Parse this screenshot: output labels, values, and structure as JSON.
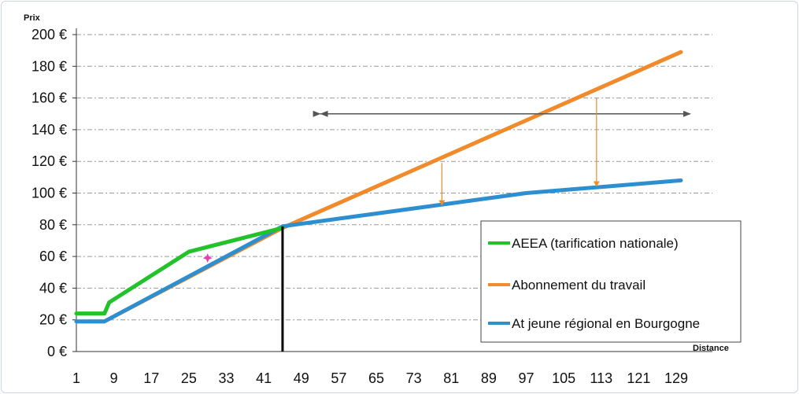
{
  "chart_data": {
    "type": "line",
    "ylabel": "Prix",
    "xlabel": "Distance",
    "ylim": [
      0,
      200
    ],
    "xlim": [
      1,
      129
    ],
    "y_ticks": [
      0,
      20,
      40,
      60,
      80,
      100,
      120,
      140,
      160,
      180,
      200
    ],
    "y_tick_labels": [
      "0 €",
      "20 €",
      "40 €",
      "60 €",
      "80 €",
      "100 €",
      "120 €",
      "140 €",
      "160 €",
      "180 €",
      "200 €"
    ],
    "x_ticks": [
      1,
      9,
      17,
      25,
      33,
      41,
      49,
      57,
      65,
      73,
      81,
      89,
      97,
      105,
      113,
      121,
      129
    ],
    "x_tick_labels": [
      "1",
      "9",
      "17",
      "25",
      "33",
      "41",
      "49",
      "57",
      "65",
      "73",
      "81",
      "89",
      "97",
      "105",
      "113",
      "121",
      "129"
    ],
    "grid": true,
    "legend_position": "bottom-right",
    "series": [
      {
        "name": "AEEA (tarification nationale)",
        "color": "#22c22a",
        "points": [
          [
            1,
            24
          ],
          [
            7,
            24
          ],
          [
            8,
            31
          ],
          [
            25,
            63
          ],
          [
            45,
            78
          ]
        ]
      },
      {
        "name": "Abonnement du travail",
        "color": "#f08a2a",
        "points": [
          [
            1,
            19
          ],
          [
            7,
            19
          ],
          [
            45,
            78
          ],
          [
            130,
            189
          ]
        ]
      },
      {
        "name": "At jeune régional en Bourgogne",
        "color": "#2e8fd0",
        "points": [
          [
            1,
            19
          ],
          [
            7,
            19
          ],
          [
            45,
            79
          ],
          [
            97,
            100
          ],
          [
            130,
            108
          ]
        ]
      }
    ],
    "annotations": {
      "vertical_marker_x": 45,
      "double_arrow": {
        "x1": 53,
        "x2": 132,
        "y": 150
      },
      "down_arrows": [
        {
          "x": 79,
          "from": 119,
          "to": 92
        },
        {
          "x": 112,
          "from": 160,
          "to": 104
        }
      ],
      "star_point": {
        "x": 29,
        "y": 59,
        "color": "#e040b0"
      }
    }
  }
}
